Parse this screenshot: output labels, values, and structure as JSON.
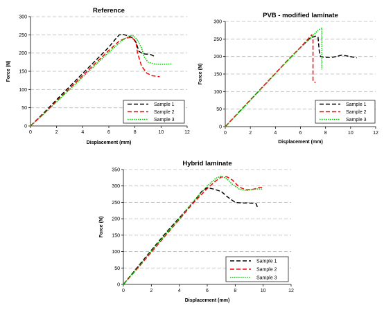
{
  "chart_data": [
    {
      "type": "line",
      "title": "Reference",
      "xlabel": "Displacement (mm)",
      "ylabel": "Force (N)",
      "xlim": [
        0,
        12
      ],
      "ylim": [
        0,
        300
      ],
      "xticks": [
        0,
        2,
        4,
        6,
        8,
        10,
        12
      ],
      "yticks": [
        0,
        50,
        100,
        150,
        200,
        250,
        300
      ],
      "grid": true,
      "legend_position": "bottom-right",
      "series": [
        {
          "name": "Sample 1",
          "color": "#000000",
          "dash": "dashed",
          "points": [
            [
              0,
              0
            ],
            [
              1,
              35
            ],
            [
              2,
              72
            ],
            [
              3,
              108
            ],
            [
              4,
              144
            ],
            [
              5,
              180
            ],
            [
              6,
              216
            ],
            [
              6.5,
              238
            ],
            [
              6.8,
              250
            ],
            [
              7.1,
              251
            ],
            [
              7.5,
              247
            ],
            [
              7.9,
              240
            ],
            [
              8.1,
              228
            ],
            [
              8.3,
              205
            ],
            [
              8.6,
              198
            ],
            [
              9.2,
              196
            ],
            [
              9.5,
              191
            ]
          ]
        },
        {
          "name": "Sample 2",
          "color": "#ff0000",
          "dash": "dashed",
          "points": [
            [
              0,
              0
            ],
            [
              1,
              33
            ],
            [
              2,
              68
            ],
            [
              3,
              103
            ],
            [
              4,
              138
            ],
            [
              5,
              173
            ],
            [
              6,
              207
            ],
            [
              6.8,
              233
            ],
            [
              7.3,
              241
            ],
            [
              7.7,
              243
            ],
            [
              7.9,
              238
            ],
            [
              8.1,
              225
            ],
            [
              8.2,
              200
            ],
            [
              8.5,
              165
            ],
            [
              8.9,
              145
            ],
            [
              9.3,
              138
            ],
            [
              9.9,
              135
            ]
          ]
        },
        {
          "name": "Sample 3",
          "color": "#00cc00",
          "dash": "dotted",
          "points": [
            [
              0,
              0
            ],
            [
              1,
              32
            ],
            [
              2,
              66
            ],
            [
              3,
              100
            ],
            [
              4,
              134
            ],
            [
              5,
              168
            ],
            [
              6,
              202
            ],
            [
              7,
              234
            ],
            [
              7.6,
              248
            ],
            [
              7.9,
              247
            ],
            [
              8.2,
              235
            ],
            [
              8.5,
              215
            ],
            [
              8.7,
              190
            ],
            [
              9.0,
              175
            ],
            [
              9.5,
              170
            ],
            [
              10,
              169
            ],
            [
              10.8,
              170
            ]
          ]
        }
      ],
      "legend": [
        "Sample 1",
        "Sample 2",
        "Sample 3"
      ]
    },
    {
      "type": "line",
      "title": "PVB - modified laminate",
      "xlabel": "Displacement (mm)",
      "ylabel": "Force (N)",
      "xlim": [
        0,
        12
      ],
      "ylim": [
        0,
        300
      ],
      "xticks": [
        0,
        2,
        4,
        6,
        8,
        10,
        12
      ],
      "yticks": [
        0,
        50,
        100,
        150,
        200,
        250,
        300
      ],
      "grid": true,
      "legend_position": "bottom-right",
      "series": [
        {
          "name": "Sample 1",
          "color": "#000000",
          "dash": "dashed",
          "points": [
            [
              0,
              0
            ],
            [
              1,
              38
            ],
            [
              2,
              76
            ],
            [
              3,
              114
            ],
            [
              4,
              152
            ],
            [
              5,
              190
            ],
            [
              6,
              226
            ],
            [
              6.8,
              253
            ],
            [
              7.2,
              258
            ],
            [
              7.4,
              255
            ],
            [
              7.5,
              215
            ],
            [
              7.6,
              200
            ],
            [
              8,
              197
            ],
            [
              8.6,
              198
            ],
            [
              9.3,
              204
            ],
            [
              9.8,
              201
            ],
            [
              10.5,
              196
            ]
          ]
        },
        {
          "name": "Sample 2",
          "color": "#ff0000",
          "dash": "dashed",
          "points": [
            [
              0,
              0
            ],
            [
              1,
              38
            ],
            [
              2,
              76
            ],
            [
              3,
              114
            ],
            [
              4,
              152
            ],
            [
              5,
              190
            ],
            [
              6,
              226
            ],
            [
              6.6,
              250
            ],
            [
              6.9,
              262
            ],
            [
              7.0,
              250
            ],
            [
              7.0,
              130
            ],
            [
              7.2,
              125
            ]
          ]
        },
        {
          "name": "Sample 3",
          "color": "#00cc00",
          "dash": "dotted",
          "points": [
            [
              0,
              0
            ],
            [
              1,
              37
            ],
            [
              2,
              75
            ],
            [
              3,
              113
            ],
            [
              4,
              151
            ],
            [
              5,
              189
            ],
            [
              6,
              225
            ],
            [
              7,
              260
            ],
            [
              7.4,
              275
            ],
            [
              7.7,
              281
            ],
            [
              7.7,
              163
            ]
          ]
        }
      ],
      "legend": [
        "Sample 1",
        "Sample 2",
        "Sample 3"
      ]
    },
    {
      "type": "line",
      "title": "Hybrid laminate",
      "xlabel": "Displacement (mm)",
      "ylabel": "Force (N)",
      "xlim": [
        0,
        12
      ],
      "ylim": [
        0,
        350
      ],
      "xticks": [
        0,
        2,
        4,
        6,
        8,
        10,
        12
      ],
      "yticks": [
        0,
        50,
        100,
        150,
        200,
        250,
        300,
        350
      ],
      "grid": true,
      "legend_position": "bottom-right",
      "series": [
        {
          "name": "Sample 1",
          "color": "#000000",
          "dash": "dashed",
          "points": [
            [
              0,
              0
            ],
            [
              1,
              52
            ],
            [
              2,
              104
            ],
            [
              3,
              155
            ],
            [
              4,
              203
            ],
            [
              5,
              250
            ],
            [
              5.6,
              283
            ],
            [
              6,
              295
            ],
            [
              6.5,
              290
            ],
            [
              7,
              283
            ],
            [
              7.5,
              265
            ],
            [
              8,
              250
            ],
            [
              8.5,
              248
            ],
            [
              9,
              248
            ],
            [
              9.5,
              246
            ],
            [
              9.6,
              234
            ]
          ]
        },
        {
          "name": "Sample 2",
          "color": "#ff0000",
          "dash": "dashed",
          "points": [
            [
              0,
              0
            ],
            [
              1,
              48
            ],
            [
              2,
              98
            ],
            [
              3,
              148
            ],
            [
              4,
              198
            ],
            [
              5,
              248
            ],
            [
              6,
              292
            ],
            [
              6.6,
              315
            ],
            [
              7,
              327
            ],
            [
              7.4,
              328
            ],
            [
              7.8,
              318
            ],
            [
              8.3,
              296
            ],
            [
              8.8,
              288
            ],
            [
              9.3,
              290
            ],
            [
              9.7,
              295
            ],
            [
              10,
              296
            ]
          ]
        },
        {
          "name": "Sample 3",
          "color": "#00cc00",
          "dash": "dotted",
          "points": [
            [
              0,
              0
            ],
            [
              1,
              50
            ],
            [
              2,
              101
            ],
            [
              3,
              151
            ],
            [
              4,
              201
            ],
            [
              5,
              252
            ],
            [
              6,
              300
            ],
            [
              6.6,
              323
            ],
            [
              7,
              330
            ],
            [
              7.4,
              322
            ],
            [
              7.8,
              305
            ],
            [
              8.3,
              290
            ],
            [
              8.8,
              286
            ],
            [
              9.3,
              290
            ],
            [
              9.7,
              291
            ],
            [
              10,
              290
            ]
          ]
        }
      ],
      "legend": [
        "Sample 1",
        "Sample 2",
        "Sample 3"
      ]
    }
  ]
}
